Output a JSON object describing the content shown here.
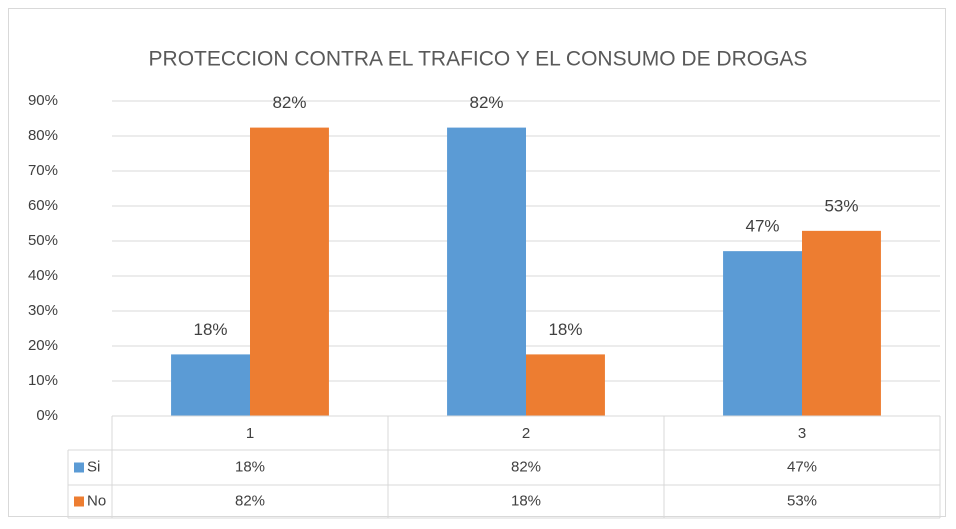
{
  "chart_data": {
    "type": "bar",
    "title": "PROTECCION CONTRA EL TRAFICO Y EL CONSUMO DE DROGAS",
    "categories": [
      "1",
      "2",
      "3"
    ],
    "series": [
      {
        "name": "Si",
        "color": "#5b9bd5",
        "values": [
          17.6,
          82.4,
          47.1
        ],
        "value_labels": [
          "18%",
          "82%",
          "47%"
        ]
      },
      {
        "name": "No",
        "color": "#ed7d31",
        "values": [
          82.4,
          17.6,
          52.9
        ],
        "value_labels": [
          "82%",
          "18%",
          "53%"
        ]
      }
    ],
    "ylim": [
      0,
      90
    ],
    "yticks": [
      {
        "value": 0,
        "label": "0%"
      },
      {
        "value": 10,
        "label": "10%"
      },
      {
        "value": 20,
        "label": "20%"
      },
      {
        "value": 30,
        "label": "30%"
      },
      {
        "value": 40,
        "label": "40%"
      },
      {
        "value": 50,
        "label": "50%"
      },
      {
        "value": 60,
        "label": "60%"
      },
      {
        "value": 70,
        "label": "70%"
      },
      {
        "value": 80,
        "label": "80%"
      },
      {
        "value": 90,
        "label": "90%"
      }
    ],
    "grid": true,
    "data_table": true
  }
}
